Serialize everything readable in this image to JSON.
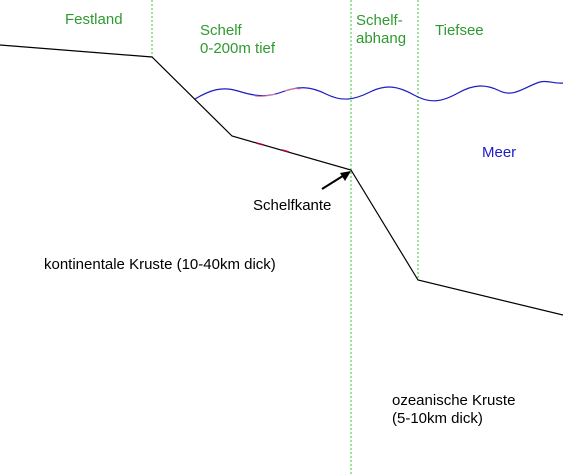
{
  "zones": {
    "festland": "Festland",
    "schelf_line1": "Schelf",
    "schelf_line2": "0-200m tief",
    "schelfabhang_line1": "Schelf-",
    "schelfabhang_line2": "abhang",
    "tiefsee": "Tiefsee"
  },
  "labels": {
    "meer": "Meer",
    "schelfkante": "Schelfkante",
    "kontinentale_kruste": "kontinentale Kruste (10-40km dick)",
    "ozeanische_kruste_line1": "ozeanische Kruste",
    "ozeanische_kruste_line2": "(5-10km dick)"
  },
  "colors": {
    "zone_text": "#2f9a2f",
    "zone_divider": "#33cc33",
    "water": "#1c1cc8",
    "crust_line": "#000000"
  }
}
